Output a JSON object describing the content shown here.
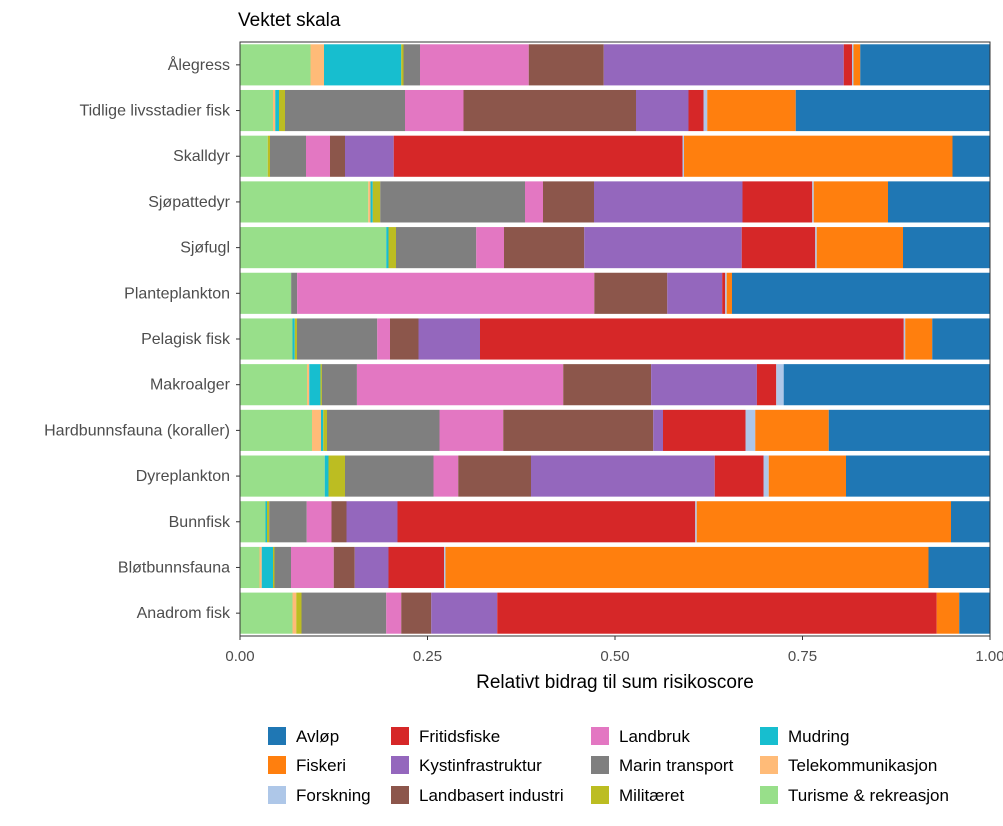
{
  "chart_data": {
    "type": "bar",
    "orientation": "horizontal",
    "stacked": true,
    "title": "Vektet skala",
    "xlabel": "Relativt bidrag til sum risikoscore",
    "ylabel": "",
    "xlim": [
      0,
      1
    ],
    "x_ticks": [
      {
        "value": 0.0,
        "label": "0.00"
      },
      {
        "value": 0.25,
        "label": "0.25"
      },
      {
        "value": 0.5,
        "label": "0.50"
      },
      {
        "value": 0.75,
        "label": "0.75"
      },
      {
        "value": 1.0,
        "label": "1.00"
      }
    ],
    "legend_position": "bottom",
    "categories": [
      "Ålegress",
      "Tidlige livsstadier fisk",
      "Skalldyr",
      "Sjøpattedyr",
      "Sjøfugl",
      "Planteplankton",
      "Pelagisk fisk",
      "Makroalger",
      "Hardbunnsfauna (koraller)",
      "Dyreplankton",
      "Bunnfisk",
      "Bløtbunnsfauna",
      "Anadrom fisk"
    ],
    "stack_order": [
      "Turisme & rekreasjon",
      "Telekommunikasjon",
      "Mudring",
      "Militæret",
      "Marin transport",
      "Landbruk",
      "Landbasert industri",
      "Kystinfrastruktur",
      "Fritidsfiske",
      "Forskning",
      "Fiskeri",
      "Avløp"
    ],
    "series": [
      {
        "name": "Avløp",
        "color": "#1f77b4",
        "values": [
          0.173,
          0.259,
          0.05,
          0.136,
          0.116,
          0.343,
          0.077,
          0.277,
          0.215,
          0.192,
          0.052,
          0.082,
          0.041
        ]
      },
      {
        "name": "Fiskeri",
        "color": "#ff7f0e",
        "values": [
          0.009,
          0.118,
          0.358,
          0.099,
          0.115,
          0.007,
          0.036,
          0.0,
          0.098,
          0.103,
          0.339,
          0.644,
          0.03
        ]
      },
      {
        "name": "Forskning",
        "color": "#aec7e8",
        "values": [
          0.002,
          0.005,
          0.002,
          0.002,
          0.002,
          0.002,
          0.002,
          0.01,
          0.013,
          0.007,
          0.002,
          0.002,
          0.0
        ]
      },
      {
        "name": "Fritidsfiske",
        "color": "#d62728",
        "values": [
          0.011,
          0.02,
          0.385,
          0.093,
          0.098,
          0.004,
          0.565,
          0.026,
          0.11,
          0.065,
          0.397,
          0.074,
          0.586
        ]
      },
      {
        "name": "Kystinfrastruktur",
        "color": "#9467bd",
        "values": [
          0.32,
          0.07,
          0.065,
          0.198,
          0.21,
          0.073,
          0.082,
          0.142,
          0.013,
          0.245,
          0.068,
          0.045,
          0.088
        ]
      },
      {
        "name": "Landbasert industri",
        "color": "#8c564b",
        "values": [
          0.1,
          0.23,
          0.02,
          0.068,
          0.107,
          0.097,
          0.038,
          0.118,
          0.2,
          0.097,
          0.02,
          0.028,
          0.04
        ]
      },
      {
        "name": "Landbruk",
        "color": "#e377c2",
        "values": [
          0.145,
          0.078,
          0.032,
          0.024,
          0.037,
          0.395,
          0.017,
          0.277,
          0.085,
          0.033,
          0.033,
          0.057,
          0.02
        ]
      },
      {
        "name": "Marin transport",
        "color": "#7f7f7f",
        "values": [
          0.022,
          0.16,
          0.048,
          0.193,
          0.107,
          0.008,
          0.107,
          0.047,
          0.15,
          0.118,
          0.05,
          0.022,
          0.113
        ]
      },
      {
        "name": "Militæret",
        "color": "#bcbd22",
        "values": [
          0.003,
          0.008,
          0.003,
          0.01,
          0.01,
          0.0,
          0.003,
          0.002,
          0.005,
          0.022,
          0.003,
          0.002,
          0.007
        ]
      },
      {
        "name": "Mudring",
        "color": "#17becf",
        "values": [
          0.103,
          0.005,
          0.0,
          0.003,
          0.003,
          0.0,
          0.003,
          0.015,
          0.003,
          0.005,
          0.002,
          0.015,
          0.0
        ]
      },
      {
        "name": "Telekommunikasjon",
        "color": "#ffbb78",
        "values": [
          0.018,
          0.003,
          0.0,
          0.003,
          0.0,
          0.0,
          0.0,
          0.003,
          0.012,
          0.0,
          0.0,
          0.003,
          0.005
        ]
      },
      {
        "name": "Turisme & rekreasjon",
        "color": "#98df8a",
        "values": [
          0.094,
          0.044,
          0.037,
          0.171,
          0.195,
          0.068,
          0.07,
          0.09,
          0.096,
          0.113,
          0.034,
          0.026,
          0.07
        ]
      }
    ]
  }
}
